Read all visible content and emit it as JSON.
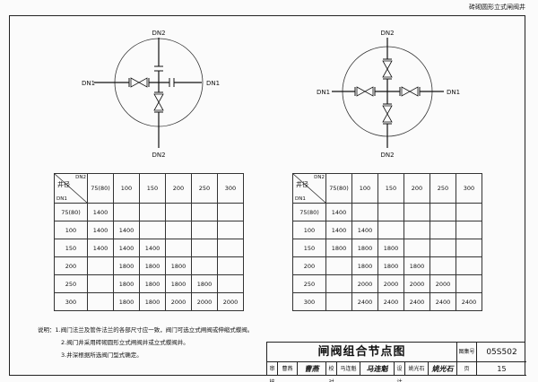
{
  "header": {
    "drawing_type": "砖砌圆形立式闸阀井"
  },
  "diagrams": [
    {
      "labels": {
        "top": "DN2",
        "bottom": "DN2",
        "left": "DN1",
        "right": "DN1"
      }
    },
    {
      "labels": {
        "top": "DN2",
        "bottom": "DN2",
        "left": "DN1",
        "right": "DN1"
      }
    }
  ],
  "tables": [
    {
      "corner": {
        "main": "井径",
        "col": "DN2",
        "row": "DN1"
      },
      "columns": [
        "75(80)",
        "100",
        "150",
        "200",
        "250",
        "300"
      ],
      "rows": [
        {
          "dn1": "75(80)",
          "values": [
            "1400",
            "",
            "",
            "",
            "",
            ""
          ]
        },
        {
          "dn1": "100",
          "values": [
            "1400",
            "1400",
            "",
            "",
            "",
            ""
          ]
        },
        {
          "dn1": "150",
          "values": [
            "1400",
            "1400",
            "1400",
            "",
            "",
            ""
          ]
        },
        {
          "dn1": "200",
          "values": [
            "",
            "1800",
            "1800",
            "1800",
            "",
            ""
          ]
        },
        {
          "dn1": "250",
          "values": [
            "",
            "1800",
            "1800",
            "1800",
            "1800",
            ""
          ]
        },
        {
          "dn1": "300",
          "values": [
            "",
            "1800",
            "1800",
            "2000",
            "2000",
            "2000"
          ]
        }
      ]
    },
    {
      "corner": {
        "main": "井径",
        "col": "DN2",
        "row": "DN1"
      },
      "columns": [
        "75(80)",
        "100",
        "150",
        "200",
        "250",
        "300"
      ],
      "rows": [
        {
          "dn1": "75(80)",
          "values": [
            "1400",
            "",
            "",
            "",
            "",
            ""
          ]
        },
        {
          "dn1": "100",
          "values": [
            "1400",
            "1400",
            "",
            "",
            "",
            ""
          ]
        },
        {
          "dn1": "150",
          "values": [
            "1800",
            "1800",
            "1800",
            "",
            "",
            ""
          ]
        },
        {
          "dn1": "200",
          "values": [
            "",
            "1800",
            "1800",
            "1800",
            "",
            ""
          ]
        },
        {
          "dn1": "250",
          "values": [
            "",
            "2000",
            "2000",
            "2000",
            "2000",
            ""
          ]
        },
        {
          "dn1": "300",
          "values": [
            "",
            "2400",
            "2400",
            "2400",
            "2400",
            "2400"
          ]
        }
      ]
    }
  ],
  "notes": {
    "label": "说明：",
    "items": [
      "1.阀门法兰及管件法兰的各部尺寸应一致，阀门可选立式闸阀或伸缩式蝶阀。",
      "2.阀门井采用砖砌圆形立式闸阀井或立式蝶阀井。",
      "3.井深根据所选阀门型式确定。"
    ]
  },
  "title_block": {
    "title": "闸阀组合节点图",
    "atlas_label": "图集号",
    "atlas_no": "05S502",
    "review_label": "审核",
    "reviewer": "曹燕",
    "reviewer_sig": "曹燕",
    "check_label": "校对",
    "checker": "马连魁",
    "checker_sig": "马连魁",
    "design_label": "设计",
    "designer": "姚光石",
    "designer_sig": "姚光石",
    "page_label": "页",
    "page": "15"
  }
}
